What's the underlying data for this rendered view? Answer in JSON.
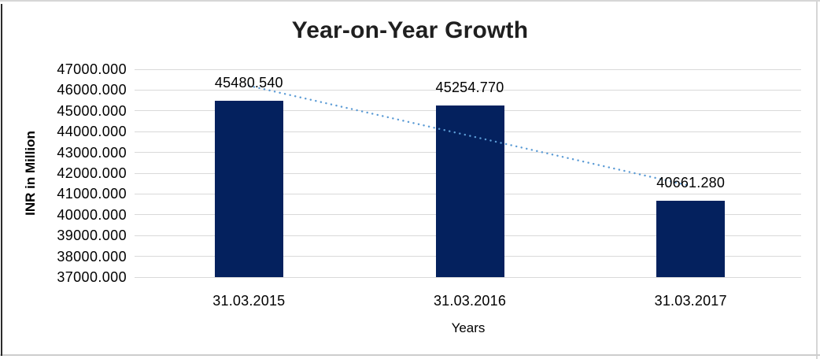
{
  "chart_data": {
    "type": "bar",
    "title": "Year-on-Year Growth",
    "xlabel": "Years",
    "ylabel": "INR in Million",
    "categories": [
      "31.03.2015",
      "31.03.2016",
      "31.03.2017"
    ],
    "values": [
      45480.54,
      45254.77,
      40661.28
    ],
    "data_labels": [
      "45480.540",
      "45254.770",
      "40661.280"
    ],
    "ylim": [
      37000,
      47000
    ],
    "ytick_step": 1000,
    "ytick_decimals": 3,
    "grid": true,
    "legend": "none",
    "trendline": {
      "type": "linear",
      "style": "dotted",
      "color": "#5B9BD5"
    },
    "colors": {
      "bar": "#04215E",
      "gridline": "#D9D9D9",
      "title_text": "#1F1F1F",
      "axis_text": "#000000"
    }
  }
}
